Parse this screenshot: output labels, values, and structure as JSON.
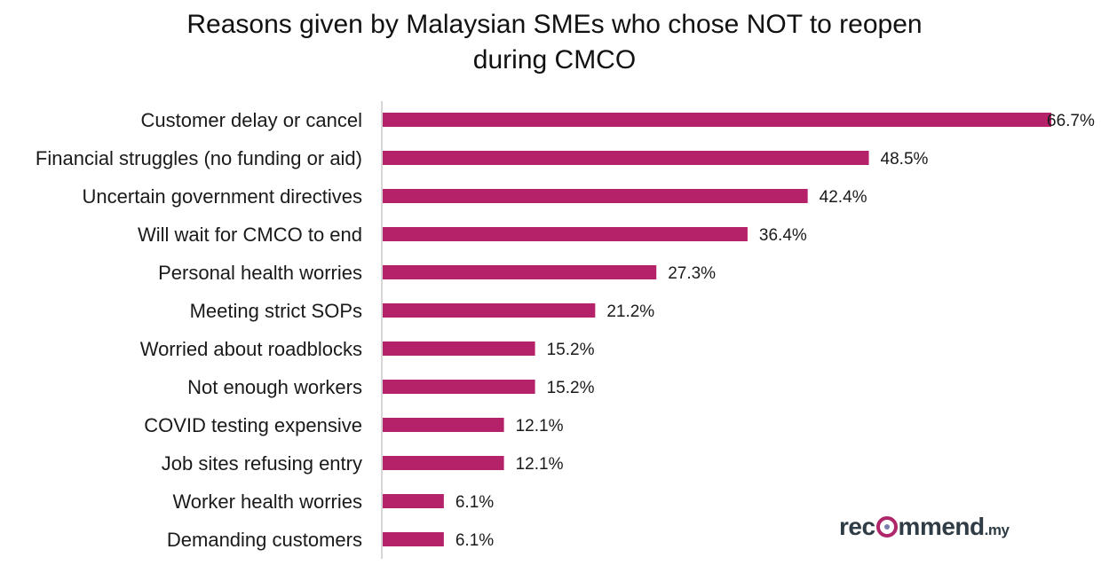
{
  "chart_data": {
    "type": "bar",
    "orientation": "horizontal",
    "title_lines": [
      "Reasons given by Malaysian SMEs who chose NOT to reopen",
      "during CMCO"
    ],
    "categories": [
      "Customer delay or cancel",
      "Financial struggles (no funding or aid)",
      "Uncertain government directives",
      "Will wait for CMCO to end",
      "Personal health worries",
      "Meeting strict SOPs",
      "Worried about roadblocks",
      "Not enough workers",
      "COVID testing expensive",
      "Job sites refusing entry",
      "Worker health worries",
      "Demanding customers"
    ],
    "values": [
      66.7,
      48.5,
      42.4,
      36.4,
      27.3,
      21.2,
      15.2,
      15.2,
      12.1,
      12.1,
      6.1,
      6.1
    ],
    "value_labels": [
      "66.7%",
      "48.5%",
      "42.4%",
      "36.4%",
      "27.3%",
      "21.2%",
      "15.2%",
      "15.2%",
      "12.1%",
      "12.1%",
      "6.1%",
      "6.1%"
    ],
    "xlim": [
      0,
      66.7
    ],
    "grid": false,
    "legend": "none",
    "bar_color": "#b5226a"
  },
  "watermark": {
    "prefix": "rec",
    "suffix": "mmend",
    "tld": ".my",
    "accent_color": "#b0266b"
  }
}
